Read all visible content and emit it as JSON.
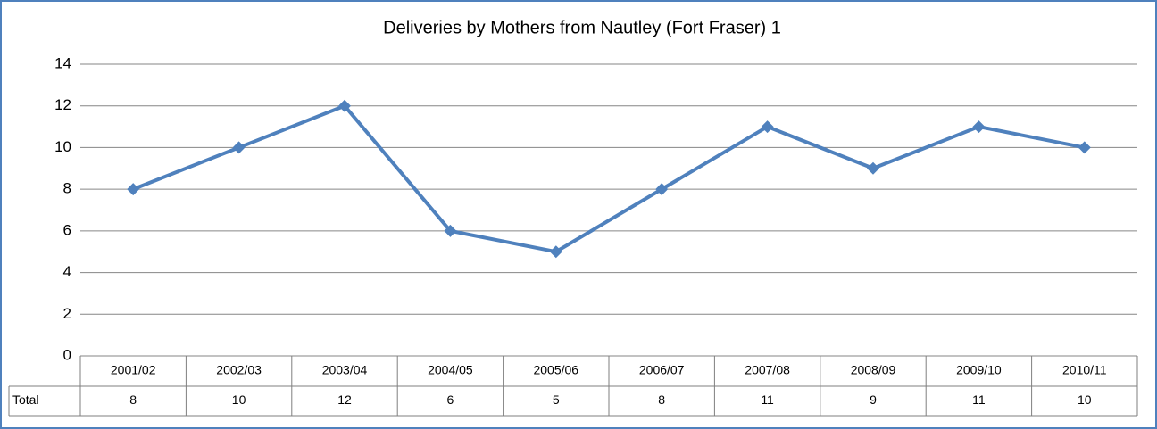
{
  "chart_data": {
    "type": "line",
    "title": "Deliveries by Mothers from Nautley (Fort Fraser) 1",
    "categories": [
      "2001/02",
      "2002/03",
      "2003/04",
      "2004/05",
      "2005/06",
      "2006/07",
      "2007/08",
      "2008/09",
      "2009/10",
      "2010/11"
    ],
    "series": [
      {
        "name": "Total",
        "color": "#4f81bd",
        "values": [
          8,
          10,
          12,
          6,
          5,
          8,
          11,
          9,
          11,
          10
        ]
      }
    ],
    "ylim": [
      0,
      14
    ],
    "yticks": [
      0,
      2,
      4,
      6,
      8,
      10,
      12,
      14
    ],
    "grid": true
  }
}
